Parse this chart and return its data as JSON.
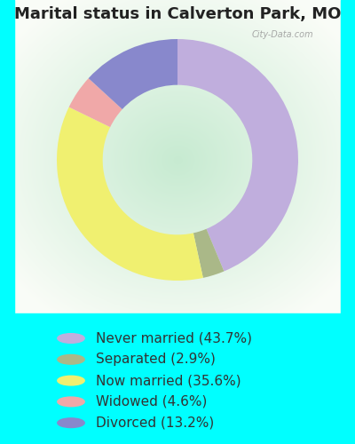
{
  "title": "Marital status in Calverton Park, MO",
  "title_fontsize": 13,
  "title_color": "#222222",
  "fig_bg": "#00FFFF",
  "chart_bg_colors": [
    "#c8e8d0",
    "#e8f5e0",
    "#f5f5f0"
  ],
  "slices": [
    {
      "label": "Never married (43.7%)",
      "value": 43.7,
      "color": "#c0aedd"
    },
    {
      "label": "Separated (2.9%)",
      "value": 2.9,
      "color": "#aab888"
    },
    {
      "label": "Now married (35.6%)",
      "value": 35.6,
      "color": "#f0f070"
    },
    {
      "label": "Widowed (4.6%)",
      "value": 4.6,
      "color": "#f0a8a8"
    },
    {
      "label": "Divorced (13.2%)",
      "value": 13.2,
      "color": "#8888cc"
    }
  ],
  "legend_fontsize": 11,
  "legend_text_color": "#333333",
  "figsize": [
    4.0,
    5.0
  ],
  "dpi": 100,
  "watermark": "City-Data.com"
}
